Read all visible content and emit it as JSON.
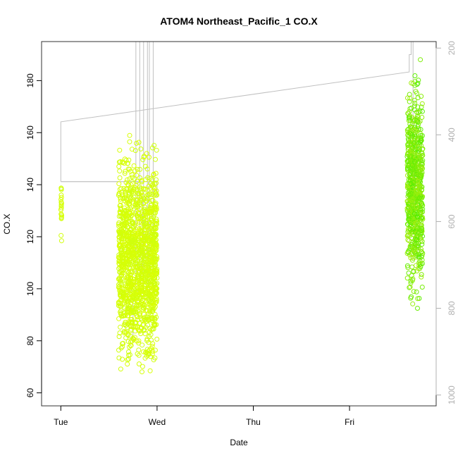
{
  "chart_data": {
    "type": "scatter",
    "title": "ATOM4 Northeast_Pacific_1 CO.X",
    "xlabel": "Date",
    "ylabel": "CO.X",
    "x_unit": "days since Tue 00:00",
    "x_ticks": [
      {
        "value": 0,
        "label": "Tue"
      },
      {
        "value": 1,
        "label": "Wed"
      },
      {
        "value": 2,
        "label": "Thu"
      },
      {
        "value": 3,
        "label": "Fri"
      }
    ],
    "xlim": [
      -0.2,
      3.9
    ],
    "y_ticks": [
      60,
      80,
      100,
      120,
      140,
      160,
      180
    ],
    "ylim": [
      55,
      195
    ],
    "y2_ticks": [
      200,
      400,
      600,
      800,
      1000
    ],
    "y2lim": [
      1025,
      185
    ],
    "y2_reversed": true,
    "y2_label": "",
    "grid": false,
    "colors": {
      "axis": "#000000",
      "frame": "#333333",
      "secondary_axis": "#b0b0b0",
      "pressure_line": "#c0c0c0",
      "series_early": "#ddff00",
      "series_late": "#77ee00"
    },
    "series": [
      {
        "marker": "open-circle",
        "color_range": [
          "#ccff11",
          "#ddff00"
        ],
        "clusters": [
          {
            "x_range": [
              0.0,
              0.01
            ],
            "y_range": [
              110,
              149
            ],
            "n": 22
          },
          {
            "x_range": [
              0.6,
              1.0
            ],
            "y_range": [
              60,
              163
            ],
            "n": 1400
          }
        ]
      },
      {
        "marker": "open-circle",
        "color_range": [
          "#aaee11",
          "#55ee00"
        ],
        "clusters": [
          {
            "x_range": [
              3.6,
              3.76
            ],
            "y_range": [
              85,
              191
            ],
            "n": 700
          }
        ]
      }
    ],
    "pressure_line": {
      "axis": "y2",
      "points": [
        [
          0.0,
          508
        ],
        [
          0.0,
          370
        ],
        [
          3.62,
          255
        ],
        [
          3.62,
          215
        ],
        [
          3.64,
          215
        ],
        [
          3.64,
          185
        ],
        [
          3.66,
          185
        ],
        [
          3.66,
          560
        ],
        [
          3.68,
          560
        ],
        [
          3.68,
          480
        ]
      ],
      "early_steps": [
        [
          0.0,
          508
        ],
        [
          0.8,
          508
        ],
        [
          0.8,
          545
        ],
        [
          0.85,
          545
        ],
        [
          0.85,
          760
        ],
        [
          0.7,
          760
        ],
        [
          0.7,
          780
        ],
        [
          0.75,
          780
        ],
        [
          0.75,
          880
        ]
      ],
      "spike_x": [
        0.78,
        0.82,
        0.86,
        0.9,
        0.92,
        0.96
      ],
      "spike_base": 760,
      "spike_top": 185
    }
  }
}
